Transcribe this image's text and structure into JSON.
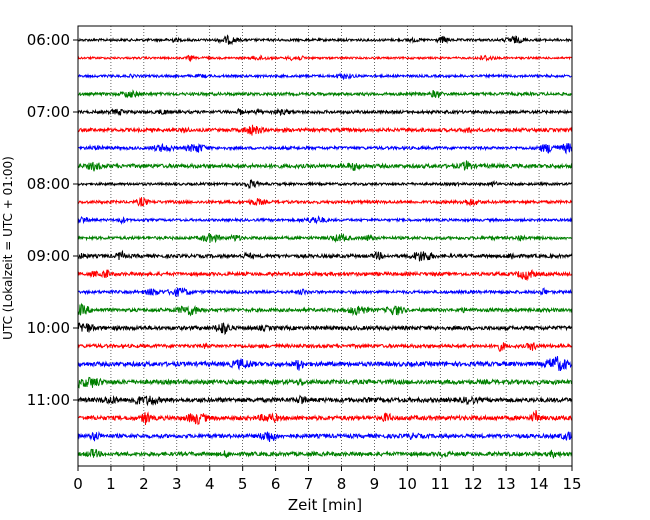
{
  "chart_data": {
    "type": "line",
    "title": "",
    "xlabel": "Zeit  [min]",
    "ylabel": "UTC (Lokalzeit = UTC + 01:00)",
    "xlim": [
      0,
      15
    ],
    "x_ticks": [
      0,
      1,
      2,
      3,
      4,
      5,
      6,
      7,
      8,
      9,
      10,
      11,
      12,
      13,
      14,
      15
    ],
    "y_tick_labels": [
      "06:00",
      "07:00",
      "08:00",
      "09:00",
      "10:00",
      "11:00"
    ],
    "grid": "vertical dotted at each minute",
    "trace_interval_minutes": 15,
    "trace_colors": [
      "#000000",
      "#ff0000",
      "#0000ff",
      "#008000"
    ],
    "series": [
      {
        "start": "06:00",
        "color": "#000000",
        "amplitude": 0.5
      },
      {
        "start": "06:15",
        "color": "#ff0000",
        "amplitude": 0.4
      },
      {
        "start": "06:30",
        "color": "#0000ff",
        "amplitude": 0.5
      },
      {
        "start": "06:45",
        "color": "#008000",
        "amplitude": 0.6
      },
      {
        "start": "07:00",
        "color": "#000000",
        "amplitude": 0.6
      },
      {
        "start": "07:15",
        "color": "#ff0000",
        "amplitude": 0.7
      },
      {
        "start": "07:30",
        "color": "#0000ff",
        "amplitude": 0.6
      },
      {
        "start": "07:45",
        "color": "#008000",
        "amplitude": 0.8
      },
      {
        "start": "08:00",
        "color": "#000000",
        "amplitude": 0.5
      },
      {
        "start": "08:15",
        "color": "#ff0000",
        "amplitude": 0.6
      },
      {
        "start": "08:30",
        "color": "#0000ff",
        "amplitude": 0.5
      },
      {
        "start": "08:45",
        "color": "#008000",
        "amplitude": 0.6
      },
      {
        "start": "09:00",
        "color": "#000000",
        "amplitude": 0.7
      },
      {
        "start": "09:15",
        "color": "#ff0000",
        "amplitude": 0.7
      },
      {
        "start": "09:30",
        "color": "#0000ff",
        "amplitude": 0.6
      },
      {
        "start": "09:45",
        "color": "#008000",
        "amplitude": 0.7
      },
      {
        "start": "10:00",
        "color": "#000000",
        "amplitude": 0.8
      },
      {
        "start": "10:15",
        "color": "#ff0000",
        "amplitude": 0.7
      },
      {
        "start": "10:30",
        "color": "#0000ff",
        "amplitude": 0.9
      },
      {
        "start": "10:45",
        "color": "#008000",
        "amplitude": 0.9
      },
      {
        "start": "11:00",
        "color": "#000000",
        "amplitude": 0.9
      },
      {
        "start": "11:15",
        "color": "#ff0000",
        "amplitude": 0.9
      },
      {
        "start": "11:30",
        "color": "#0000ff",
        "amplitude": 0.8
      },
      {
        "start": "11:45",
        "color": "#008000",
        "amplitude": 0.8
      }
    ]
  }
}
